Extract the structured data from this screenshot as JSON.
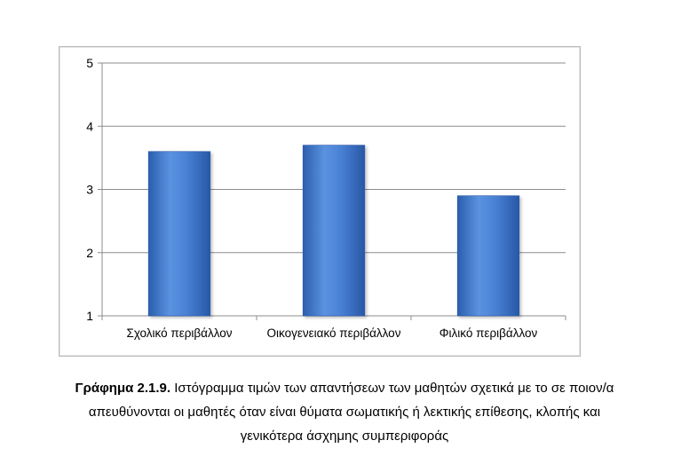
{
  "chart_data": {
    "type": "bar",
    "categories": [
      "Σχολικό περιβάλλον",
      "Οικογενειακό περιβάλλον",
      "Φιλικό περιβάλλον"
    ],
    "values": [
      3.6,
      3.7,
      2.9
    ],
    "ylim": [
      1,
      5
    ],
    "yticks": [
      "1",
      "2",
      "3",
      "4",
      "5"
    ],
    "grid": true,
    "legend": "none",
    "bar_color": "#3a74cc"
  },
  "caption": {
    "label": "Γράφημα 2.1.9.",
    "line1": " Ιστόγραμμα τιμών των απαντήσεων των μαθητών σχετικά με το σε ποιον/α",
    "line2": "απευθύνονται οι μαθητές όταν είναι θύματα σωματικής ή λεκτικής επίθεσης, κλοπής και",
    "line3": "γενικότερα άσχημης συμπεριφοράς"
  }
}
